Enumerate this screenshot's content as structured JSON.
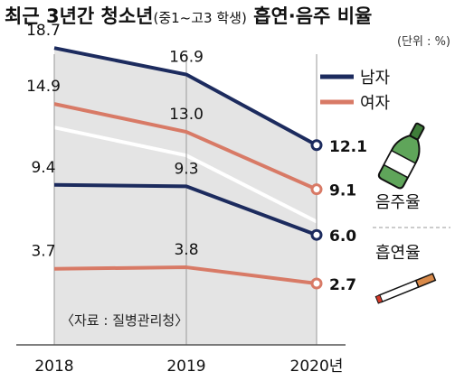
{
  "title": {
    "main_a": "최근 3년간 청소년",
    "sub": "(중1~고3 학생)",
    "main_b": " 흡연·음주 비율"
  },
  "unit": "(단위 : %)",
  "source": "〈자료 : 질병관리청〉",
  "colors": {
    "male": "#1c2b5e",
    "female": "#d87a66",
    "band": "#e4e4e4",
    "axis": "#555555"
  },
  "chart_data": {
    "type": "line",
    "title": "최근 3년간 청소년(중1~고3 학생) 흡연·음주 비율",
    "x": [
      "2018",
      "2019",
      "2020년"
    ],
    "ylabel": "(단위 : %)",
    "groups": [
      "음주율",
      "흡연율"
    ],
    "series": [
      {
        "name": "남자",
        "group": "음주율",
        "values": [
          18.7,
          16.9,
          12.1
        ],
        "labels": [
          "18.7",
          "16.9",
          "12.1"
        ]
      },
      {
        "name": "여자",
        "group": "음주율",
        "values": [
          14.9,
          13.0,
          9.1
        ],
        "labels": [
          "14.9",
          "13.0",
          "9.1"
        ]
      },
      {
        "name": "남자",
        "group": "흡연율",
        "values": [
          9.4,
          9.3,
          6.0
        ],
        "labels": [
          "9.4",
          "9.3",
          "6.0"
        ]
      },
      {
        "name": "여자",
        "group": "흡연율",
        "values": [
          3.7,
          3.8,
          2.7
        ],
        "labels": [
          "3.7",
          "3.8",
          "2.7"
        ]
      }
    ],
    "legend": [
      "남자",
      "여자"
    ],
    "grid": false
  }
}
